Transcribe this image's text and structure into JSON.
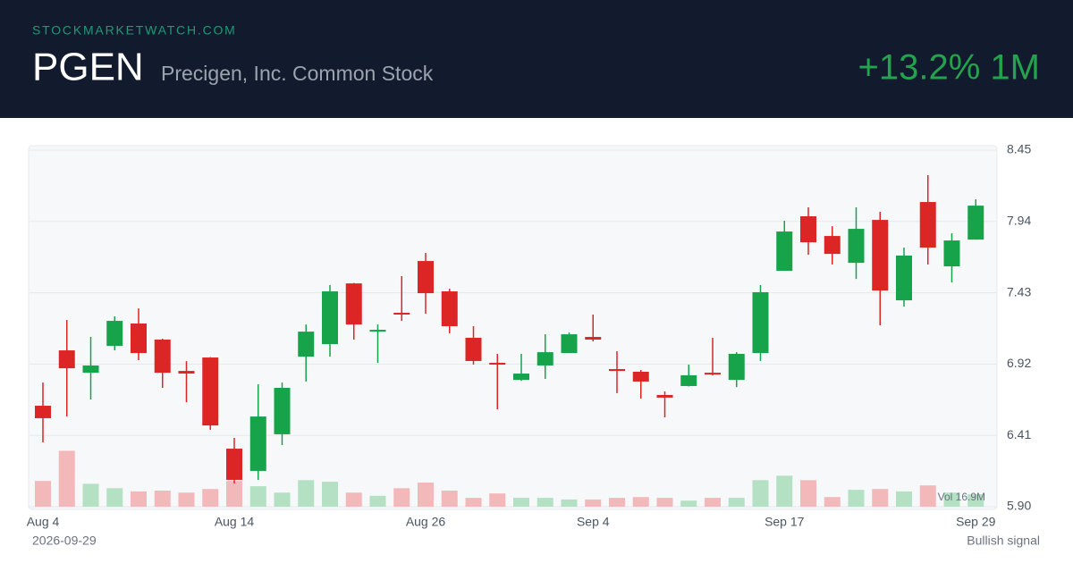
{
  "header": {
    "brand": "STOCKMARKETWATCH.COM",
    "ticker": "PGEN",
    "name": "Precigen, Inc. Common Stock",
    "change": "+13.2% 1M"
  },
  "footer": {
    "date": "2026-09-29",
    "signal": "Bullish signal"
  },
  "chart_data": {
    "type": "candlestick",
    "categories": [
      "Aug 4",
      null,
      null,
      null,
      null,
      null,
      null,
      null,
      "Aug 14",
      null,
      null,
      null,
      null,
      null,
      null,
      null,
      "Aug 26",
      null,
      null,
      null,
      null,
      null,
      null,
      "Sep 4",
      null,
      null,
      null,
      null,
      null,
      null,
      null,
      "Sep 17",
      null,
      null,
      null,
      null,
      null,
      null,
      null,
      "Sep 29"
    ],
    "open": [
      6.622,
      7.018,
      6.858,
      7.05,
      7.21,
      7.095,
      6.871,
      6.967,
      6.315,
      6.156,
      6.418,
      6.973,
      7.063,
      7.497,
      7.152,
      7.287,
      7.657,
      7.44,
      7.108,
      6.929,
      6.807,
      6.91,
      6.999,
      7.114,
      6.884,
      6.865,
      6.699,
      6.763,
      6.858,
      6.807,
      6.999,
      7.587,
      7.977,
      7.836,
      7.644,
      7.951,
      7.376,
      8.079,
      7.619,
      7.81
    ],
    "high": [
      6.788,
      7.235,
      7.114,
      7.261,
      7.318,
      7.101,
      6.941,
      6.97,
      6.392,
      6.775,
      6.788,
      7.203,
      7.485,
      7.5,
      7.203,
      7.549,
      7.715,
      7.459,
      7.191,
      6.993,
      6.993,
      7.133,
      7.146,
      7.274,
      7.012,
      6.878,
      6.724,
      6.916,
      7.108,
      7.005,
      7.485,
      7.945,
      8.041,
      7.906,
      8.041,
      8.009,
      7.753,
      8.271,
      7.855,
      8.098
    ],
    "low": [
      6.36,
      6.545,
      6.667,
      7.018,
      6.948,
      6.75,
      6.647,
      6.45,
      6.066,
      6.092,
      6.341,
      6.795,
      6.973,
      7.095,
      6.929,
      7.229,
      7.28,
      7.14,
      6.916,
      6.596,
      6.8,
      6.814,
      6.999,
      7.082,
      6.712,
      6.673,
      6.539,
      6.76,
      6.839,
      6.756,
      6.942,
      7.587,
      7.702,
      7.632,
      7.529,
      7.197,
      7.331,
      7.632,
      7.504,
      7.81
    ],
    "close": [
      6.533,
      6.89,
      6.91,
      7.229,
      6.999,
      6.858,
      6.852,
      6.481,
      6.092,
      6.545,
      6.75,
      7.152,
      7.44,
      7.203,
      7.165,
      7.274,
      7.427,
      7.191,
      6.942,
      6.916,
      6.852,
      7.005,
      7.133,
      7.095,
      6.871,
      6.795,
      6.68,
      6.84,
      6.846,
      6.993,
      7.434,
      7.868,
      7.791,
      7.708,
      7.887,
      7.446,
      7.696,
      7.753,
      7.804,
      8.053
    ],
    "volume": [
      0.64,
      1.39,
      0.57,
      0.46,
      0.38,
      0.4,
      0.35,
      0.44,
      0.64,
      0.51,
      0.35,
      0.66,
      0.62,
      0.35,
      0.27,
      0.46,
      0.6,
      0.4,
      0.22,
      0.33,
      0.22,
      0.22,
      0.18,
      0.18,
      0.22,
      0.24,
      0.22,
      0.15,
      0.22,
      0.22,
      0.66,
      0.77,
      0.66,
      0.24,
      0.42,
      0.44,
      0.38,
      0.53,
      0.35,
      0.31
    ],
    "volume_label": "Vol 16.9M",
    "ylim": [
      5.9,
      8.45
    ],
    "yticks": [
      {
        "value": 5.9,
        "label": "5.90"
      },
      6.41,
      6.92,
      7.43,
      7.94,
      8.45
    ],
    "grid": true,
    "up_color": "#16a34a",
    "down_color": "#dc2626",
    "up_volume_color": "#b4e0c3",
    "down_volume_color": "#f3b8ba"
  }
}
